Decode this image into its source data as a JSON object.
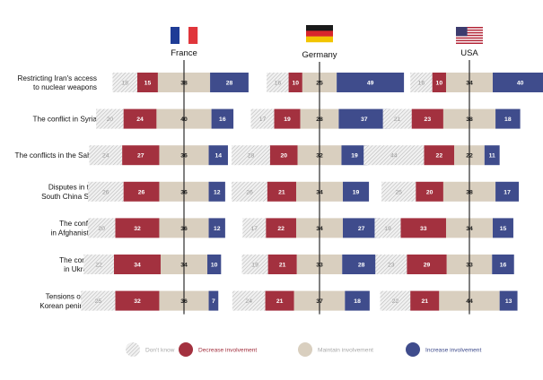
{
  "chart_data": {
    "type": "bar",
    "stacked": true,
    "orientation": "horizontal",
    "layout": "small multiples by country",
    "categories": [
      "Restricting Iran's access to nuclear weapons",
      "The conflict in Syria",
      "The conflicts in the Sahel",
      "Disputes in the South China Sea",
      "The conflict in Afghanistan",
      "The conflict in Ukraine",
      "Tensions on the Korean peninsula"
    ],
    "category_lines": [
      [
        "Restricting Iran's access",
        "to nuclear weapons"
      ],
      [
        "The conflict in Syria"
      ],
      [
        "The conflicts in the Sahel"
      ],
      [
        "Disputes in the",
        "South China Sea"
      ],
      [
        "The conflict",
        "in Afghanistan"
      ],
      [
        "The conflict",
        "in Ukraine"
      ],
      [
        "Tensions on the",
        "Korean peninsula"
      ]
    ],
    "responses": [
      "Don't know",
      "Decrease involvement",
      "Maintain involvement",
      "Increase involvement"
    ],
    "response_colors": {
      "Don't know": "#d9d9d9",
      "Decrease involvement": "#a3313f",
      "Maintain involvement": "#d9cfbf",
      "Increase involvement": "#3f4c8c"
    },
    "panels": [
      {
        "country": "France",
        "flag": [
          "#1f3c96",
          "#ffffff",
          "#e0353b"
        ],
        "data": [
          [
            18,
            15,
            38,
            28
          ],
          [
            20,
            24,
            40,
            16
          ],
          [
            24,
            27,
            36,
            14
          ],
          [
            26,
            26,
            36,
            12
          ],
          [
            20,
            32,
            36,
            12
          ],
          [
            22,
            34,
            34,
            10
          ],
          [
            25,
            32,
            36,
            7
          ]
        ]
      },
      {
        "country": "Germany",
        "flag": [
          "#1a1a1a",
          "#d8262c",
          "#f2c500"
        ],
        "data": [
          [
            16,
            10,
            25,
            49
          ],
          [
            17,
            19,
            28,
            37
          ],
          [
            28,
            20,
            32,
            19
          ],
          [
            26,
            21,
            34,
            19
          ],
          [
            17,
            22,
            34,
            27
          ],
          [
            19,
            21,
            33,
            28
          ],
          [
            24,
            21,
            37,
            18
          ]
        ]
      },
      {
        "country": "USA",
        "flag": [
          "#b22234",
          "#ffffff",
          "#3c3b6e"
        ],
        "data": [
          [
            16,
            10,
            34,
            40
          ],
          [
            21,
            23,
            38,
            18
          ],
          [
            44,
            22,
            22,
            11
          ],
          [
            25,
            20,
            38,
            17
          ],
          [
            19,
            33,
            34,
            15
          ],
          [
            23,
            29,
            33,
            16
          ],
          [
            22,
            21,
            44,
            13
          ]
        ]
      }
    ]
  }
}
